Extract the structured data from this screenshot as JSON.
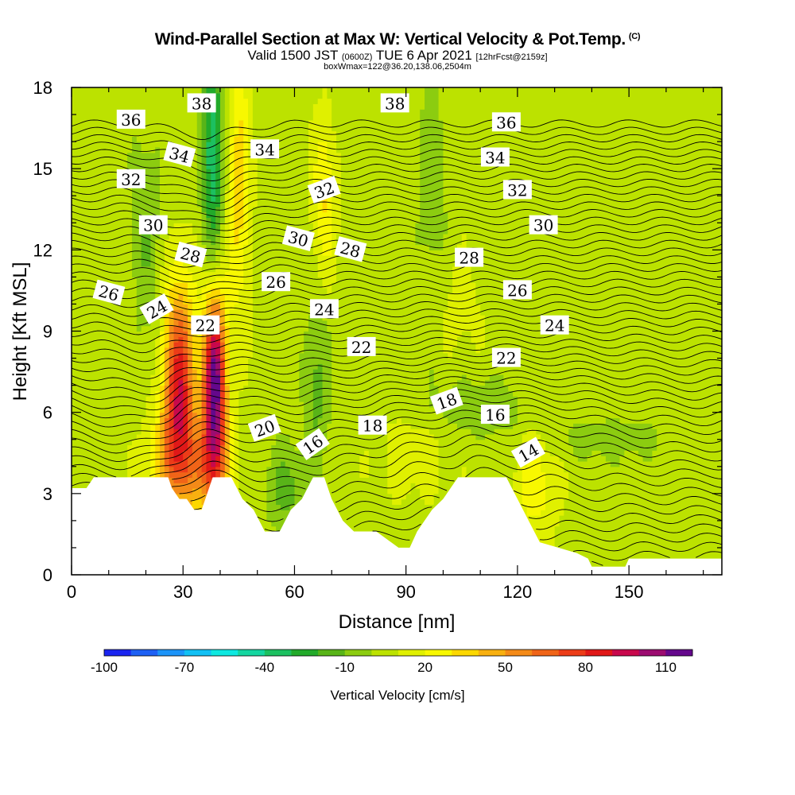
{
  "header": {
    "title": "Wind-Parallel Section at Max W: Vertical Velocity & Pot.Temp.",
    "copyright": "(C)",
    "valid_prefix": "Valid 1500 JST",
    "valid_utc": "(0600Z)",
    "valid_date": "TUE 6 Apr 2021",
    "forecast": "[12hrFcst@2159z]",
    "box_info": "boxWmax=122@36.20,138.06,2504m"
  },
  "chart_data": {
    "type": "heatmap",
    "xlabel": "Distance [nm]",
    "ylabel": "Height [Kft MSL]",
    "xlim": [
      0,
      175
    ],
    "ylim": [
      0,
      18
    ],
    "x_ticks": [
      "0",
      "30",
      "60",
      "90",
      "120",
      "150"
    ],
    "x_tick_values": [
      0,
      30,
      60,
      90,
      120,
      150
    ],
    "y_ticks": [
      "0",
      "3",
      "6",
      "9",
      "12",
      "15",
      "18"
    ],
    "y_tick_values": [
      0,
      3,
      6,
      9,
      12,
      15,
      18
    ],
    "colorbar": {
      "title": "Vertical Velocity [cm/s]",
      "tick_labels": [
        "-100",
        "-70",
        "-40",
        "-10",
        "20",
        "50",
        "80",
        "110"
      ],
      "tick_values": [
        -100,
        -70,
        -40,
        -10,
        20,
        50,
        80,
        110
      ],
      "min": -100,
      "max": 120,
      "colors": [
        "#1a24f0",
        "#1e60f4",
        "#1c94f8",
        "#12c0f4",
        "#0ee8e0",
        "#14d6a0",
        "#1cc060",
        "#22aa2a",
        "#58b418",
        "#8ccc10",
        "#bce200",
        "#e0f000",
        "#f8f800",
        "#fcd800",
        "#f8b010",
        "#f48a18",
        "#f06418",
        "#ec3c18",
        "#e01818",
        "#c8084c",
        "#9c0c70",
        "#64088c"
      ]
    },
    "velocity_features": [
      {
        "x": 29,
        "y": 7.0,
        "sx": 3.0,
        "sy": 2.6,
        "w": 80
      },
      {
        "x": 38.5,
        "y": 7.0,
        "sx": 2.2,
        "sy": 2.4,
        "w": 112
      },
      {
        "x": 37,
        "y": 3.8,
        "sx": 4,
        "sy": 1.2,
        "w": 35
      },
      {
        "x": 27,
        "y": 4.2,
        "sx": 5,
        "sy": 1.4,
        "w": 30
      },
      {
        "x": 45,
        "y": 14.5,
        "sx": 2.2,
        "sy": 3.4,
        "w": 30
      },
      {
        "x": 68,
        "y": 14.0,
        "sx": 2.2,
        "sy": 2.0,
        "w": 25
      },
      {
        "x": 38,
        "y": 15.5,
        "sx": 2.0,
        "sy": 3.0,
        "w": -45
      },
      {
        "x": 58,
        "y": 3.2,
        "sx": 4,
        "sy": 1.2,
        "w": -20
      },
      {
        "x": 66,
        "y": 7.0,
        "sx": 2.5,
        "sy": 2.0,
        "w": -20
      },
      {
        "x": 125,
        "y": 3.4,
        "sx": 4,
        "sy": 1.5,
        "w": 20
      },
      {
        "x": 92,
        "y": 4.4,
        "sx": 7,
        "sy": 1.2,
        "w": 10
      },
      {
        "x": 110,
        "y": 6.2,
        "sx": 10,
        "sy": 0.8,
        "w": -14
      },
      {
        "x": 145,
        "y": 5.0,
        "sx": 12,
        "sy": 0.6,
        "w": -12
      },
      {
        "x": 20,
        "y": 12.5,
        "sx": 3,
        "sy": 3,
        "w": -15
      },
      {
        "x": 97,
        "y": 14.0,
        "sx": 3,
        "sy": 4,
        "w": -12
      },
      {
        "x": 103,
        "y": 10.0,
        "sx": 6,
        "sy": 1.5,
        "w": 8
      }
    ],
    "terrain_kft": [
      [
        0,
        3.2
      ],
      [
        4,
        3.2
      ],
      [
        6,
        3.6
      ],
      [
        26,
        3.6
      ],
      [
        27,
        3.2
      ],
      [
        29,
        2.8
      ],
      [
        31,
        2.8
      ],
      [
        33,
        2.4
      ],
      [
        35,
        2.4
      ],
      [
        38,
        3.6
      ],
      [
        43,
        3.6
      ],
      [
        46,
        2.8
      ],
      [
        49,
        2.4
      ],
      [
        52,
        1.6
      ],
      [
        56,
        1.6
      ],
      [
        59,
        2.4
      ],
      [
        62,
        2.8
      ],
      [
        65,
        3.6
      ],
      [
        68,
        3.6
      ],
      [
        70,
        2.8
      ],
      [
        73,
        2.0
      ],
      [
        76,
        1.6
      ],
      [
        82,
        1.6
      ],
      [
        86,
        1.2
      ],
      [
        88,
        1.0
      ],
      [
        91,
        1.0
      ],
      [
        93,
        1.6
      ],
      [
        97,
        2.4
      ],
      [
        100,
        2.8
      ],
      [
        104,
        3.6
      ],
      [
        117,
        3.6
      ],
      [
        120,
        2.8
      ],
      [
        123,
        2.0
      ],
      [
        126,
        1.2
      ],
      [
        131,
        1.0
      ],
      [
        136,
        0.8
      ],
      [
        139,
        0.6
      ],
      [
        140,
        0.3
      ],
      [
        149,
        0.3
      ],
      [
        150,
        0.6
      ],
      [
        160,
        0.6
      ],
      [
        166,
        0.6
      ],
      [
        175,
        0.6
      ]
    ],
    "theta_contours": {
      "min": 12,
      "max": 39,
      "step": 0.5,
      "labels": [
        {
          "text": "38",
          "x": 35,
          "y": 17.4,
          "angle": 0
        },
        {
          "text": "38",
          "x": 87,
          "y": 17.4,
          "angle": 0
        },
        {
          "text": "36",
          "x": 16,
          "y": 16.8,
          "angle": 0
        },
        {
          "text": "36",
          "x": 117,
          "y": 16.7,
          "angle": 0
        },
        {
          "text": "34",
          "x": 29,
          "y": 15.5,
          "angle": 15
        },
        {
          "text": "34",
          "x": 52,
          "y": 15.7,
          "angle": 0
        },
        {
          "text": "34",
          "x": 114,
          "y": 15.4,
          "angle": 0
        },
        {
          "text": "32",
          "x": 16,
          "y": 14.6,
          "angle": 0
        },
        {
          "text": "32",
          "x": 68,
          "y": 14.2,
          "angle": -20
        },
        {
          "text": "32",
          "x": 120,
          "y": 14.2,
          "angle": 0
        },
        {
          "text": "30",
          "x": 22,
          "y": 12.9,
          "angle": 0
        },
        {
          "text": "30",
          "x": 61,
          "y": 12.4,
          "angle": 15
        },
        {
          "text": "30",
          "x": 127,
          "y": 12.9,
          "angle": 0
        },
        {
          "text": "28",
          "x": 32,
          "y": 11.8,
          "angle": 15
        },
        {
          "text": "28",
          "x": 75,
          "y": 12.0,
          "angle": 15
        },
        {
          "text": "28",
          "x": 107,
          "y": 11.7,
          "angle": 0
        },
        {
          "text": "26",
          "x": 10,
          "y": 10.4,
          "angle": 15
        },
        {
          "text": "26",
          "x": 55,
          "y": 10.8,
          "angle": 0
        },
        {
          "text": "26",
          "x": 120,
          "y": 10.5,
          "angle": 0
        },
        {
          "text": "24",
          "x": 23,
          "y": 9.8,
          "angle": -30
        },
        {
          "text": "24",
          "x": 68,
          "y": 9.8,
          "angle": 0
        },
        {
          "text": "24",
          "x": 130,
          "y": 9.2,
          "angle": 0
        },
        {
          "text": "22",
          "x": 36,
          "y": 9.2,
          "angle": 0
        },
        {
          "text": "22",
          "x": 78,
          "y": 8.4,
          "angle": 0
        },
        {
          "text": "22",
          "x": 117,
          "y": 8.0,
          "angle": 0
        },
        {
          "text": "20",
          "x": 52,
          "y": 5.4,
          "angle": -20
        },
        {
          "text": "18",
          "x": 81,
          "y": 5.5,
          "angle": 0
        },
        {
          "text": "18",
          "x": 101,
          "y": 6.4,
          "angle": -20
        },
        {
          "text": "16",
          "x": 65,
          "y": 4.8,
          "angle": -35
        },
        {
          "text": "16",
          "x": 114,
          "y": 5.9,
          "angle": 0
        },
        {
          "text": "14",
          "x": 123,
          "y": 4.5,
          "angle": -30
        }
      ]
    }
  }
}
